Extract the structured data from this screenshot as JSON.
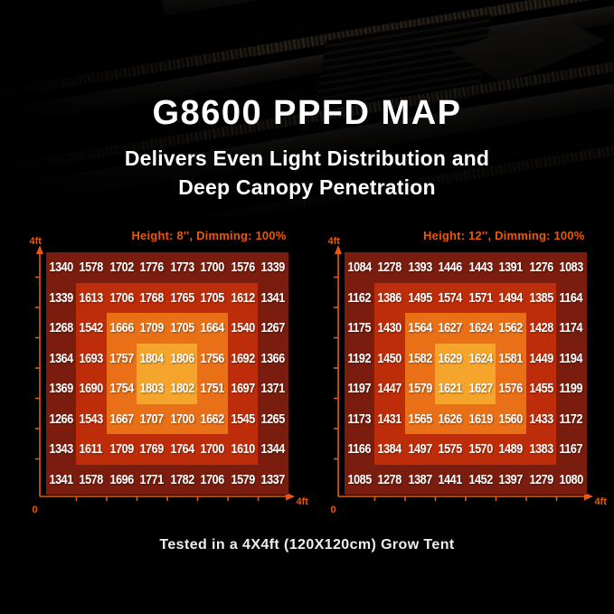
{
  "page": {
    "title": "G8600 PPFD MAP",
    "subtitle_line1": "Delivers Even Light Distribution and",
    "subtitle_line2": "Deep Canopy Penetration",
    "footer": "Tested in a 4X4ft (120X120cm) Grow Tent"
  },
  "colors": {
    "background": "#000000",
    "accent_orange": "#E8590F",
    "heat_scale_outer_to_center": [
      "#7A1D0E",
      "#BE2D0A",
      "#E97017",
      "#F5A42C"
    ],
    "value_text": "#FFFFFF",
    "title_text": "#FFFFFF"
  },
  "chart_data": [
    {
      "type": "heatmap",
      "title": "Height: 8'', Dimming: 100%",
      "rows": 8,
      "cols": 8,
      "x_axis": {
        "min": "0",
        "max": "4ft"
      },
      "y_axis": {
        "min": "0",
        "max": "4ft"
      },
      "legend_position": "none",
      "grid": "off",
      "values": [
        [
          1340,
          1578,
          1702,
          1776,
          1773,
          1700,
          1576,
          1339
        ],
        [
          1339,
          1613,
          1706,
          1768,
          1765,
          1705,
          1612,
          1341
        ],
        [
          1268,
          1542,
          1666,
          1709,
          1705,
          1664,
          1540,
          1267
        ],
        [
          1364,
          1693,
          1757,
          1804,
          1806,
          1756,
          1692,
          1366
        ],
        [
          1369,
          1690,
          1754,
          1803,
          1802,
          1751,
          1697,
          1371
        ],
        [
          1266,
          1543,
          1667,
          1707,
          1700,
          1662,
          1545,
          1265
        ],
        [
          1343,
          1611,
          1709,
          1769,
          1764,
          1700,
          1610,
          1344
        ],
        [
          1341,
          1578,
          1696,
          1771,
          1782,
          1706,
          1579,
          1337
        ]
      ]
    },
    {
      "type": "heatmap",
      "title": "Height: 12'', Dimming: 100%",
      "rows": 8,
      "cols": 8,
      "x_axis": {
        "min": "0",
        "max": "4ft"
      },
      "y_axis": {
        "min": "0",
        "max": "4ft"
      },
      "legend_position": "none",
      "grid": "off",
      "values": [
        [
          1084,
          1278,
          1393,
          1446,
          1443,
          1391,
          1276,
          1083
        ],
        [
          1162,
          1386,
          1495,
          1574,
          1571,
          1494,
          1385,
          1164
        ],
        [
          1175,
          1430,
          1564,
          1627,
          1624,
          1562,
          1428,
          1174
        ],
        [
          1192,
          1450,
          1582,
          1629,
          1624,
          1581,
          1449,
          1194
        ],
        [
          1197,
          1447,
          1579,
          1621,
          1627,
          1576,
          1455,
          1199
        ],
        [
          1173,
          1431,
          1565,
          1626,
          1619,
          1560,
          1433,
          1172
        ],
        [
          1166,
          1384,
          1497,
          1575,
          1570,
          1489,
          1383,
          1167
        ],
        [
          1085,
          1278,
          1387,
          1441,
          1452,
          1397,
          1279,
          1080
        ]
      ]
    }
  ]
}
